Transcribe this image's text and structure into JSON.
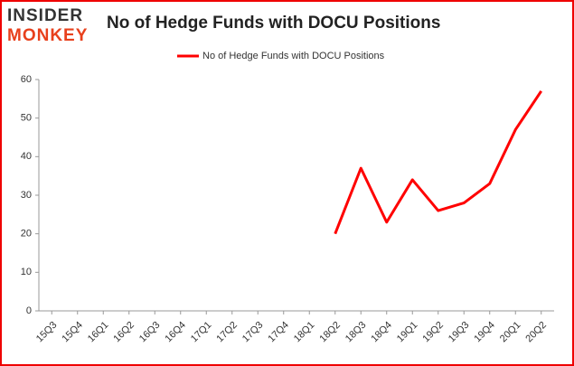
{
  "logo": {
    "line1": "INSIDER",
    "line2": "MONKEY"
  },
  "chart_data": {
    "type": "line",
    "title": "No of Hedge Funds with DOCU Positions",
    "categories": [
      "15Q3",
      "15Q4",
      "16Q1",
      "16Q2",
      "16Q3",
      "16Q4",
      "17Q1",
      "17Q2",
      "17Q3",
      "17Q4",
      "18Q1",
      "18Q2",
      "18Q3",
      "18Q4",
      "19Q1",
      "19Q2",
      "19Q3",
      "19Q4",
      "20Q1",
      "20Q2"
    ],
    "series": [
      {
        "name": "No of Hedge Funds with DOCU Positions",
        "color": "#ff0000",
        "values": [
          null,
          null,
          null,
          null,
          null,
          null,
          null,
          null,
          null,
          null,
          null,
          20,
          37,
          23,
          34,
          26,
          28,
          33,
          47,
          57
        ]
      }
    ],
    "ylim": [
      0,
      60
    ],
    "yticks": [
      0,
      10,
      20,
      30,
      40,
      50,
      60
    ],
    "grid": false,
    "legend": "top"
  }
}
